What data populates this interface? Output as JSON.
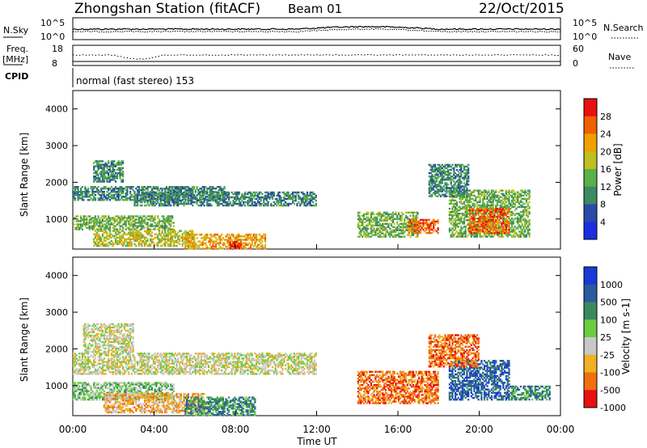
{
  "header": {
    "station": "Zhongshan Station (fitACF)",
    "beam": "Beam 01",
    "date": "22/Oct/2015"
  },
  "strip1": {
    "left_label": "N.Sky",
    "right_label": "N.Search",
    "y_ticks": [
      "10^5",
      "10^0"
    ]
  },
  "strip2": {
    "left_label_1": "Freq.",
    "left_label_2": "[MHz]",
    "left_ticks": [
      "18",
      "8"
    ],
    "right_label": "Nave",
    "right_ticks": [
      "60",
      "0"
    ]
  },
  "cpid": {
    "label": "CPID",
    "mode": "normal (fast stereo) 153"
  },
  "axes": {
    "ylabel": "Slant Range [km]",
    "xlabel": "Time UT",
    "x_ticks": [
      "00:00",
      "04:00",
      "08:00",
      "12:00",
      "16:00",
      "20:00",
      "00:00"
    ],
    "y_ticks": [
      "1000",
      "2000",
      "3000",
      "4000"
    ]
  },
  "chart_data": [
    {
      "type": "heatmap",
      "name": "Power",
      "colorbar_label": "Power [dB]",
      "colorbar_ticks": [
        "4",
        "8",
        "12",
        "16",
        "20",
        "24",
        "28"
      ],
      "colors": [
        "#1a2ee0",
        "#2a4aa8",
        "#3b8a62",
        "#5ab04a",
        "#c0c020",
        "#f0a000",
        "#f06000",
        "#e81010"
      ],
      "x_range_hours": [
        0,
        24
      ],
      "y_range_km": [
        180,
        4500
      ],
      "regions": [
        {
          "t0": 0.0,
          "t1": 7.5,
          "r0": 1500,
          "r1": 1900,
          "level": 2
        },
        {
          "t0": 3.0,
          "t1": 12.0,
          "r0": 1350,
          "r1": 1750,
          "level": 2
        },
        {
          "t0": 0.0,
          "t1": 5.0,
          "r0": 700,
          "r1": 1100,
          "level": 3
        },
        {
          "t0": 1.0,
          "t1": 6.0,
          "r0": 250,
          "r1": 700,
          "level": 4
        },
        {
          "t0": 5.5,
          "t1": 9.5,
          "r0": 180,
          "r1": 600,
          "level": 5
        },
        {
          "t0": 7.7,
          "t1": 8.3,
          "r0": 180,
          "r1": 400,
          "level": 7
        },
        {
          "t0": 1.0,
          "t1": 2.5,
          "r0": 2000,
          "r1": 2600,
          "level": 2
        },
        {
          "t0": 14.0,
          "t1": 17.0,
          "r0": 500,
          "r1": 1200,
          "level": 3
        },
        {
          "t0": 16.5,
          "t1": 18.0,
          "r0": 600,
          "r1": 1000,
          "level": 6
        },
        {
          "t0": 18.5,
          "t1": 22.5,
          "r0": 500,
          "r1": 1800,
          "level": 3
        },
        {
          "t0": 19.5,
          "t1": 21.5,
          "r0": 600,
          "r1": 1300,
          "level": 6
        },
        {
          "t0": 17.5,
          "t1": 19.5,
          "r0": 1600,
          "r1": 2500,
          "level": 2
        }
      ]
    },
    {
      "type": "heatmap",
      "name": "Velocity",
      "colorbar_label": "Velocity [m s-1]",
      "colorbar_ticks": [
        "1000",
        "500",
        "100",
        "25",
        "-25",
        "-100",
        "-500",
        "-1000"
      ],
      "colors": [
        "#1a3ad8",
        "#2a5aa0",
        "#3a8a60",
        "#6acc40",
        "#c8c8c8",
        "#f0b020",
        "#f07010",
        "#e81010"
      ],
      "x_range_hours": [
        0,
        24
      ],
      "y_range_km": [
        180,
        4500
      ],
      "regions": [
        {
          "t0": 0.0,
          "t1": 12.0,
          "r0": 1300,
          "r1": 1900,
          "level": 4
        },
        {
          "t0": 0.5,
          "t1": 3.0,
          "r0": 1900,
          "r1": 2700,
          "level": 4
        },
        {
          "t0": 0.0,
          "t1": 5.0,
          "r0": 600,
          "r1": 1100,
          "level": 3
        },
        {
          "t0": 1.5,
          "t1": 6.5,
          "r0": 250,
          "r1": 800,
          "level": 5
        },
        {
          "t0": 5.5,
          "t1": 9.0,
          "r0": 180,
          "r1": 700,
          "level": 2
        },
        {
          "t0": 14.0,
          "t1": 18.0,
          "r0": 500,
          "r1": 1400,
          "level": 6
        },
        {
          "t0": 18.5,
          "t1": 21.5,
          "r0": 600,
          "r1": 1700,
          "level": 1
        },
        {
          "t0": 17.5,
          "t1": 20.0,
          "r0": 1500,
          "r1": 2400,
          "level": 6
        },
        {
          "t0": 21.5,
          "t1": 23.5,
          "r0": 600,
          "r1": 1000,
          "level": 2
        }
      ]
    }
  ]
}
